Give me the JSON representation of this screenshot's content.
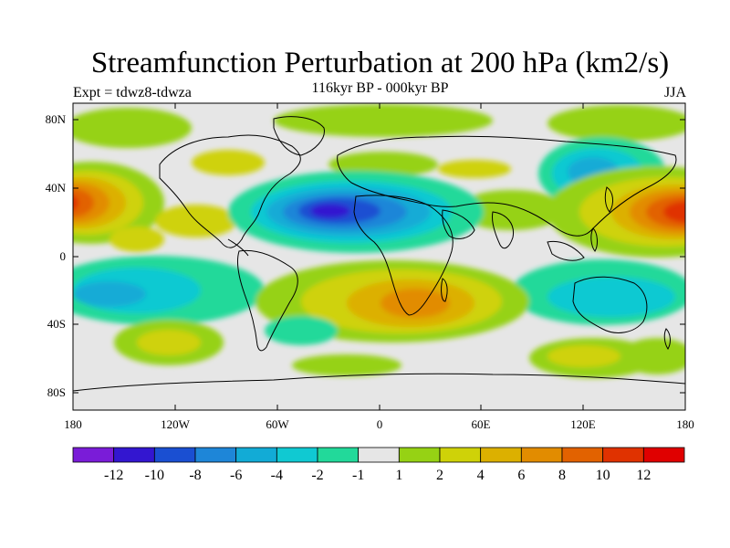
{
  "title": "Streamfunction Perturbation at 200 hPa (km2/s)",
  "subtitle": "116kyr BP - 000kyr BP",
  "expt_label": "Expt = tdwz8-tdwza",
  "season": "JJA",
  "lat_ticks": [
    "80N",
    "40N",
    "0",
    "40S",
    "80S"
  ],
  "lon_ticks": [
    "180",
    "120W",
    "60W",
    "0",
    "60E",
    "120E",
    "180"
  ],
  "colorbar": {
    "colors": [
      "#7a1cd8",
      "#3316d0",
      "#1a4fd2",
      "#1e86d8",
      "#12abd6",
      "#10c9d2",
      "#22d99a",
      "#e6e6e6",
      "#96d214",
      "#cfd208",
      "#dcb000",
      "#e28c00",
      "#e26200",
      "#e03200",
      "#e00000"
    ],
    "labels": [
      "-12",
      "-10",
      "-8",
      "-6",
      "-4",
      "-2",
      "-1",
      "1",
      "2",
      "4",
      "6",
      "8",
      "10",
      "12"
    ]
  }
}
